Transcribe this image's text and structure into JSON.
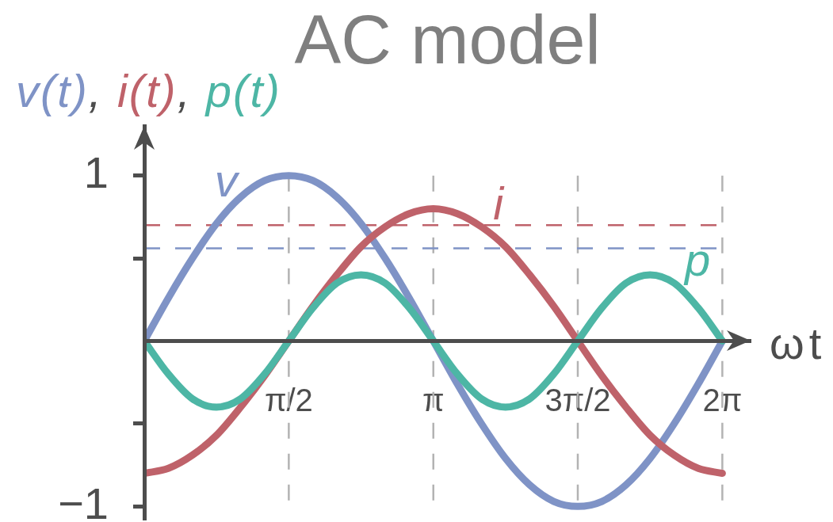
{
  "chart_data": {
    "type": "line",
    "title": "AC model",
    "xlabel": "ωt",
    "ylabel": "v(t), i(t), p(t)",
    "x": [
      0,
      0.262,
      0.524,
      0.785,
      1.047,
      1.309,
      1.571,
      1.833,
      2.094,
      2.356,
      2.618,
      2.88,
      3.142,
      3.403,
      3.665,
      3.927,
      4.189,
      4.451,
      4.712,
      4.974,
      5.236,
      5.498,
      5.76,
      6.021,
      6.283
    ],
    "series": [
      {
        "name": "v",
        "color": "#7f93c6",
        "values": [
          0,
          0.26,
          0.5,
          0.71,
          0.87,
          0.97,
          1,
          0.97,
          0.87,
          0.71,
          0.5,
          0.26,
          0,
          -0.26,
          -0.5,
          -0.71,
          -0.87,
          -0.97,
          -1,
          -0.97,
          -0.87,
          -0.71,
          -0.5,
          -0.26,
          0
        ]
      },
      {
        "name": "i",
        "color": "#bf626a",
        "values": [
          -0.8,
          -0.77,
          -0.69,
          -0.57,
          -0.4,
          -0.21,
          0,
          0.21,
          0.4,
          0.57,
          0.69,
          0.77,
          0.8,
          0.77,
          0.69,
          0.57,
          0.4,
          0.21,
          0,
          -0.21,
          -0.4,
          -0.57,
          -0.69,
          -0.77,
          -0.8
        ]
      },
      {
        "name": "p",
        "color": "#4db6a5",
        "values": [
          0,
          -0.2,
          -0.35,
          -0.4,
          -0.35,
          -0.2,
          0,
          0.2,
          0.35,
          0.4,
          0.35,
          0.2,
          0,
          -0.2,
          -0.35,
          -0.4,
          -0.35,
          -0.2,
          0,
          0.2,
          0.35,
          0.4,
          0.35,
          0.2,
          0
        ]
      }
    ],
    "xlim": [
      0,
      6.59
    ],
    "ylim": [
      -1.08,
      1.3
    ],
    "xticks": [
      {
        "value": 1.571,
        "label": "π/2"
      },
      {
        "value": 3.142,
        "label": "π"
      },
      {
        "value": 4.712,
        "label": "3π/2"
      },
      {
        "value": 6.283,
        "label": "2π"
      }
    ],
    "yticks": [
      {
        "value": -1,
        "label": "−1"
      },
      {
        "value": -0.5,
        "label": null
      },
      {
        "value": 0.5,
        "label": null
      },
      1
    ],
    "ref_lines": [
      {
        "axis": "y",
        "value": 0.7,
        "color": "#bf626a",
        "line_style": "dashed"
      },
      {
        "axis": "y",
        "value": 0.56,
        "color": "#7f93c6",
        "line_style": "dashed"
      }
    ],
    "grid": "x",
    "marker": "none",
    "line_style": "solid"
  }
}
